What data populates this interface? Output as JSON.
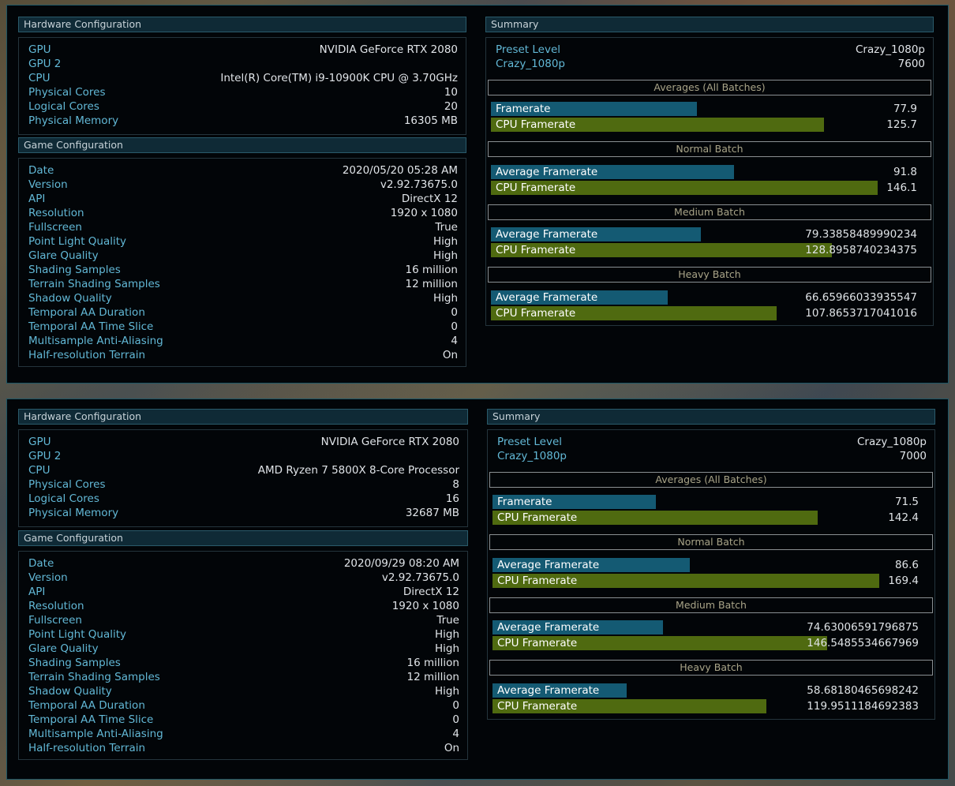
{
  "runs": [
    {
      "hardware": {
        "title": "Hardware Configuration",
        "rows": [
          {
            "key": "GPU",
            "value": "NVIDIA GeForce RTX 2080"
          },
          {
            "key": "GPU 2",
            "value": ""
          },
          {
            "key": "CPU",
            "value": "Intel(R) Core(TM) i9-10900K CPU @ 3.70GHz"
          },
          {
            "key": "Physical Cores",
            "value": "10"
          },
          {
            "key": "Logical Cores",
            "value": "20"
          },
          {
            "key": "Physical Memory",
            "value": "16305 MB"
          }
        ]
      },
      "game": {
        "title": "Game Configuration",
        "rows": [
          {
            "key": "Date",
            "value": "2020/05/20 05:28 AM"
          },
          {
            "key": "Version",
            "value": "v2.92.73675.0"
          },
          {
            "key": "API",
            "value": "DirectX 12"
          },
          {
            "key": "Resolution",
            "value": "1920 x 1080"
          },
          {
            "key": "Fullscreen",
            "value": "True"
          },
          {
            "key": "Point Light Quality",
            "value": "High"
          },
          {
            "key": "Glare Quality",
            "value": "High"
          },
          {
            "key": "Shading Samples",
            "value": "16 million"
          },
          {
            "key": "Terrain Shading Samples",
            "value": "12 million"
          },
          {
            "key": "Shadow Quality",
            "value": "High"
          },
          {
            "key": "Temporal AA Duration",
            "value": "0"
          },
          {
            "key": "Temporal AA Time Slice",
            "value": "0"
          },
          {
            "key": "Multisample Anti-Aliasing",
            "value": "4"
          },
          {
            "key": "Half-resolution Terrain",
            "value": "On"
          }
        ]
      },
      "summary": {
        "title": "Summary",
        "rows": [
          {
            "key": "Preset Level",
            "value": "Crazy_1080p"
          },
          {
            "key": "Crazy_1080p",
            "value": "7600"
          }
        ],
        "batches": [
          {
            "title": "Averages (All Batches)",
            "bars": [
              {
                "label": "Framerate",
                "value": "77.9",
                "num": 77.9,
                "type": "fr"
              },
              {
                "label": "CPU Framerate",
                "value": "125.7",
                "num": 125.7,
                "type": "cpu"
              }
            ]
          },
          {
            "title": "Normal Batch",
            "bars": [
              {
                "label": "Average Framerate",
                "value": "91.8",
                "num": 91.8,
                "type": "fr"
              },
              {
                "label": "CPU Framerate",
                "value": "146.1",
                "num": 146.1,
                "type": "cpu"
              }
            ]
          },
          {
            "title": "Medium Batch",
            "bars": [
              {
                "label": "Average Framerate",
                "value": "79.33858489990234",
                "num": 79.33858489990234,
                "type": "fr"
              },
              {
                "label": "CPU Framerate",
                "value": "128.8958740234375",
                "num": 128.8958740234375,
                "type": "cpu"
              }
            ]
          },
          {
            "title": "Heavy Batch",
            "bars": [
              {
                "label": "Average Framerate",
                "value": "66.65966033935547",
                "num": 66.65966033935547,
                "type": "fr"
              },
              {
                "label": "CPU Framerate",
                "value": "107.8653717041016",
                "num": 107.8653717041016,
                "type": "cpu"
              }
            ]
          }
        ]
      }
    },
    {
      "hardware": {
        "title": "Hardware Configuration",
        "rows": [
          {
            "key": "GPU",
            "value": "NVIDIA GeForce RTX 2080"
          },
          {
            "key": "GPU 2",
            "value": ""
          },
          {
            "key": "CPU",
            "value": "AMD Ryzen 7 5800X 8-Core Processor"
          },
          {
            "key": "Physical Cores",
            "value": "8"
          },
          {
            "key": "Logical Cores",
            "value": "16"
          },
          {
            "key": "Physical Memory",
            "value": "32687 MB"
          }
        ]
      },
      "game": {
        "title": "Game Configuration",
        "rows": [
          {
            "key": "Date",
            "value": "2020/09/29 08:20 AM"
          },
          {
            "key": "Version",
            "value": "v2.92.73675.0"
          },
          {
            "key": "API",
            "value": "DirectX 12"
          },
          {
            "key": "Resolution",
            "value": "1920 x 1080"
          },
          {
            "key": "Fullscreen",
            "value": "True"
          },
          {
            "key": "Point Light Quality",
            "value": "High"
          },
          {
            "key": "Glare Quality",
            "value": "High"
          },
          {
            "key": "Shading Samples",
            "value": "16 million"
          },
          {
            "key": "Terrain Shading Samples",
            "value": "12 million"
          },
          {
            "key": "Shadow Quality",
            "value": "High"
          },
          {
            "key": "Temporal AA Duration",
            "value": "0"
          },
          {
            "key": "Temporal AA Time Slice",
            "value": "0"
          },
          {
            "key": "Multisample Anti-Aliasing",
            "value": "4"
          },
          {
            "key": "Half-resolution Terrain",
            "value": "On"
          }
        ]
      },
      "summary": {
        "title": "Summary",
        "rows": [
          {
            "key": "Preset Level",
            "value": "Crazy_1080p"
          },
          {
            "key": "Crazy_1080p",
            "value": "7000"
          }
        ],
        "batches": [
          {
            "title": "Averages (All Batches)",
            "bars": [
              {
                "label": "Framerate",
                "value": "71.5",
                "num": 71.5,
                "type": "fr"
              },
              {
                "label": "CPU Framerate",
                "value": "142.4",
                "num": 142.4,
                "type": "cpu"
              }
            ]
          },
          {
            "title": "Normal Batch",
            "bars": [
              {
                "label": "Average Framerate",
                "value": "86.6",
                "num": 86.6,
                "type": "fr"
              },
              {
                "label": "CPU Framerate",
                "value": "169.4",
                "num": 169.4,
                "type": "cpu"
              }
            ]
          },
          {
            "title": "Medium Batch",
            "bars": [
              {
                "label": "Average Framerate",
                "value": "74.63006591796875",
                "num": 74.63006591796875,
                "type": "fr"
              },
              {
                "label": "CPU Framerate",
                "value": "146.5485534667969",
                "num": 146.5485534667969,
                "type": "cpu"
              }
            ]
          },
          {
            "title": "Heavy Batch",
            "bars": [
              {
                "label": "Average Framerate",
                "value": "58.68180465698242",
                "num": 58.68180465698242,
                "type": "fr"
              },
              {
                "label": "CPU Framerate",
                "value": "119.9511184692383",
                "num": 119.9511184692383,
                "type": "cpu"
              }
            ]
          }
        ]
      }
    }
  ],
  "colors": {
    "framerate_bar": "#145a73",
    "cpu_bar": "#4f6a10",
    "key_text": "#62b8d6",
    "batch_title": "#a9a488"
  }
}
